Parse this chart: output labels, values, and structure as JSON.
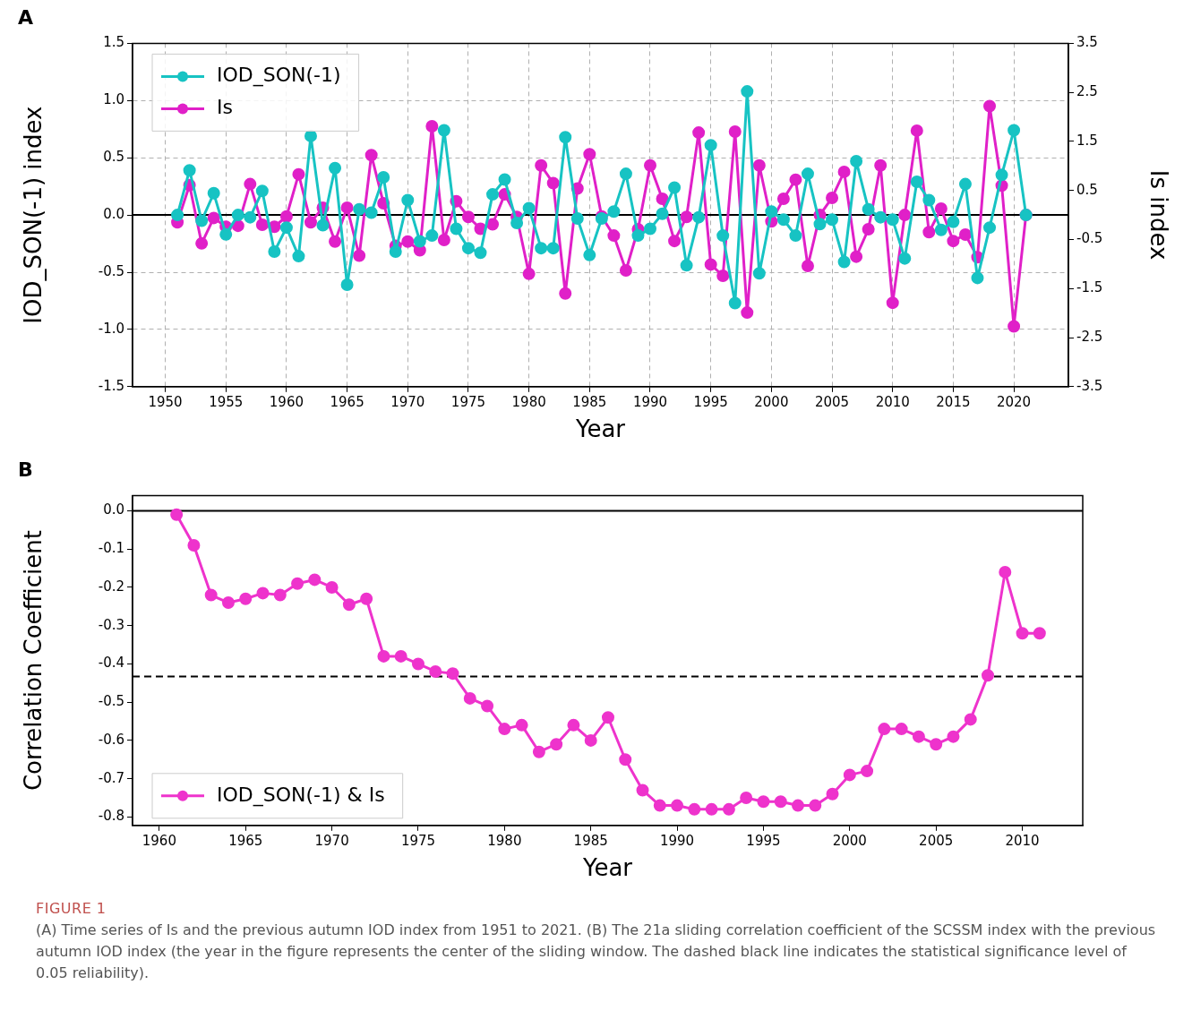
{
  "chart_data": [
    {
      "type": "line",
      "title": "A",
      "xlabel": "Year",
      "ylabel": "IOD_SON(-1) index",
      "y2label": "Is index",
      "x": [
        1951,
        1952,
        1953,
        1954,
        1955,
        1956,
        1957,
        1958,
        1959,
        1960,
        1961,
        1962,
        1963,
        1964,
        1965,
        1966,
        1967,
        1968,
        1969,
        1970,
        1971,
        1972,
        1973,
        1974,
        1975,
        1976,
        1977,
        1978,
        1979,
        1980,
        1981,
        1982,
        1983,
        1984,
        1985,
        1986,
        1987,
        1988,
        1989,
        1990,
        1991,
        1992,
        1993,
        1994,
        1995,
        1996,
        1997,
        1998,
        1999,
        2000,
        2001,
        2002,
        2003,
        2004,
        2005,
        2006,
        2007,
        2008,
        2009,
        2010,
        2011,
        2012,
        2013,
        2014,
        2015,
        2016,
        2017,
        2018,
        2019,
        2020,
        2021
      ],
      "series": [
        {
          "name": "IOD_SON(-1)",
          "color": "#17c3c3",
          "values": [
            0.0,
            0.39,
            -0.05,
            0.19,
            -0.17,
            0.0,
            -0.02,
            0.21,
            -0.32,
            -0.11,
            -0.36,
            0.69,
            -0.09,
            0.41,
            -0.61,
            0.05,
            0.02,
            0.33,
            -0.32,
            0.13,
            -0.23,
            -0.18,
            0.74,
            -0.12,
            -0.29,
            -0.33,
            0.18,
            0.31,
            -0.07,
            0.06,
            -0.29,
            -0.29,
            0.68,
            -0.03,
            -0.35,
            -0.03,
            0.03,
            0.36,
            -0.18,
            -0.12,
            0.01,
            0.24,
            -0.44,
            -0.02,
            0.61,
            -0.18,
            -0.77,
            1.08,
            -0.51,
            0.03,
            -0.04,
            -0.18,
            0.36,
            -0.08,
            -0.04,
            -0.41,
            0.47,
            0.05,
            -0.02,
            -0.04,
            -0.38,
            0.29,
            0.13,
            -0.13,
            -0.06,
            0.27,
            -0.55,
            -0.11,
            0.35,
            0.74,
            0.0
          ]
        },
        {
          "name": "Is",
          "color": "#e020c8",
          "axis": "y2",
          "values": [
            -0.15,
            0.61,
            -0.58,
            -0.06,
            -0.24,
            -0.22,
            0.63,
            -0.2,
            -0.24,
            -0.03,
            0.83,
            -0.15,
            0.15,
            -0.54,
            0.15,
            -0.83,
            1.22,
            0.24,
            -0.63,
            -0.54,
            -0.72,
            1.81,
            -0.51,
            0.28,
            -0.04,
            -0.28,
            -0.19,
            0.42,
            -0.04,
            -1.2,
            1.01,
            0.65,
            -1.6,
            0.54,
            1.24,
            -0.03,
            -0.42,
            -1.13,
            -0.29,
            1.01,
            0.33,
            -0.53,
            -0.04,
            1.68,
            -1.01,
            -1.24,
            1.7,
            -1.99,
            1.01,
            -0.13,
            0.33,
            0.72,
            -1.04,
            0.0,
            0.35,
            0.88,
            -0.85,
            -0.29,
            1.01,
            -1.79,
            0.0,
            1.72,
            -0.35,
            0.13,
            -0.53,
            -0.4,
            -0.86,
            2.22,
            0.6,
            -2.27,
            0.0
          ]
        }
      ],
      "xlim": [
        1947.3,
        2024.5
      ],
      "xticks": [
        1950,
        1955,
        1960,
        1965,
        1970,
        1975,
        1980,
        1985,
        1990,
        1995,
        2000,
        2005,
        2010,
        2015,
        2020
      ],
      "ylim": [
        -1.5,
        1.5
      ],
      "yticks": [
        {
          "value": -1.5,
          "label": "-1.5"
        },
        {
          "value": -1.0,
          "label": "-1.0"
        },
        {
          "value": -0.5,
          "label": "-0.5"
        },
        {
          "value": 0,
          "label": "0.0"
        },
        {
          "value": 0.5,
          "label": "0.5"
        },
        {
          "value": 1.0,
          "label": "1.0"
        },
        {
          "value": 1.5,
          "label": "1.5"
        }
      ],
      "y2lim": [
        -3.5,
        3.5
      ],
      "y2ticks": [
        -3.5,
        -2.5,
        -1.5,
        -0.5,
        0.5,
        1.5,
        2.5,
        3.5
      ],
      "ref_lines": [
        {
          "axis": "y",
          "value": 0,
          "color": "#000000",
          "line_style": "solid"
        }
      ],
      "grid": true,
      "legend": "top left",
      "marker": "circle",
      "line_style": "solid"
    },
    {
      "type": "line",
      "title": "B",
      "xlabel": "Year",
      "ylabel": "Correlation Coefficient",
      "x": [
        1961,
        1962,
        1963,
        1964,
        1965,
        1966,
        1967,
        1968,
        1969,
        1970,
        1971,
        1972,
        1973,
        1974,
        1975,
        1976,
        1977,
        1978,
        1979,
        1980,
        1981,
        1982,
        1983,
        1984,
        1985,
        1986,
        1987,
        1988,
        1989,
        1990,
        1991,
        1992,
        1993,
        1994,
        1995,
        1996,
        1997,
        1998,
        1999,
        2000,
        2001,
        2002,
        2003,
        2004,
        2005,
        2006,
        2007,
        2008,
        2009,
        2010,
        2011
      ],
      "series": [
        {
          "name": "IOD_SON(-1) & Is",
          "color": "#ee33cc",
          "values": [
            -0.01,
            -0.09,
            -0.22,
            -0.24,
            -0.23,
            -0.215,
            -0.22,
            -0.19,
            -0.18,
            -0.2,
            -0.245,
            -0.23,
            -0.38,
            -0.38,
            -0.4,
            -0.42,
            -0.425,
            -0.49,
            -0.51,
            -0.57,
            -0.56,
            -0.63,
            -0.61,
            -0.56,
            -0.6,
            -0.54,
            -0.65,
            -0.73,
            -0.77,
            -0.77,
            -0.78,
            -0.78,
            -0.78,
            -0.75,
            -0.76,
            -0.76,
            -0.77,
            -0.77,
            -0.74,
            -0.69,
            -0.68,
            -0.57,
            -0.57,
            -0.59,
            -0.61,
            -0.59,
            -0.545,
            -0.43,
            -0.16,
            -0.32,
            -0.32
          ]
        }
      ],
      "xlim": [
        1958.45,
        2013.5
      ],
      "xticks": [
        1960,
        1965,
        1970,
        1975,
        1980,
        1985,
        1990,
        1995,
        2000,
        2005,
        2010
      ],
      "ylim": [
        -0.822,
        0.04
      ],
      "yticks": [
        {
          "value": -0.8,
          "label": "-0.8"
        },
        {
          "value": -0.7,
          "label": "-0.7"
        },
        {
          "value": -0.6,
          "label": "-0.6"
        },
        {
          "value": -0.5,
          "label": "-0.5"
        },
        {
          "value": -0.4,
          "label": "-0.4"
        },
        {
          "value": -0.3,
          "label": "-0.3"
        },
        {
          "value": -0.2,
          "label": "-0.2"
        },
        {
          "value": -0.1,
          "label": "-0.1"
        },
        {
          "value": 0,
          "label": "0.0"
        }
      ],
      "ref_lines": [
        {
          "axis": "y",
          "value": 0,
          "color": "#000000",
          "line_style": "solid"
        },
        {
          "axis": "y",
          "value": -0.433,
          "color": "#000000",
          "line_style": "dashed"
        }
      ],
      "grid": false,
      "legend": "bottom left",
      "marker": "circle",
      "line_style": "solid",
      "annotations": [
        "FIGURE 1",
        "(A) Time series of Is and the previous autumn IOD index from 1951 to 2021. (B) The 21a sliding correlation coefficient of the SCSSM index with the previous autumn IOD index (the year in the figure represents the center of the sliding window. The dashed black line indicates the statistical significance level of 0.05 reliability)."
      ]
    }
  ]
}
